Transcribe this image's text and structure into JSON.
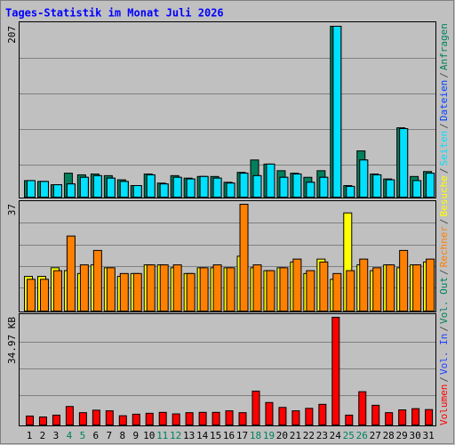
{
  "chart_data": [
    {
      "type": "bar",
      "title": "Tages-Statistik im Monat Juli 2026",
      "ylim": [
        0,
        207
      ],
      "yticks": [
        207
      ],
      "series": [
        {
          "name": "Seiten",
          "color": "#00e0ff",
          "values": [
            20,
            19,
            15,
            16,
            24,
            26,
            23,
            19,
            14,
            27,
            16,
            24,
            22,
            25,
            23,
            17,
            29,
            26,
            40,
            24,
            28,
            18,
            24,
            207,
            13,
            45,
            27,
            21,
            83,
            20,
            29
          ]
        },
        {
          "name": "Dateien",
          "color": "#0040ff",
          "values": [
            20,
            19,
            15,
            16,
            24,
            26,
            23,
            19,
            14,
            27,
            16,
            24,
            22,
            25,
            23,
            17,
            29,
            26,
            40,
            24,
            28,
            18,
            24,
            207,
            13,
            45,
            27,
            21,
            83,
            20,
            29
          ]
        },
        {
          "name": "Anfragen",
          "color": "#00805c",
          "values": [
            20,
            19,
            15,
            29,
            27,
            28,
            26,
            21,
            14,
            28,
            17,
            26,
            23,
            25,
            25,
            18,
            30,
            45,
            40,
            32,
            29,
            24,
            32,
            207,
            14,
            56,
            28,
            22,
            84,
            25,
            31
          ]
        }
      ]
    },
    {
      "type": "bar",
      "ylim": [
        0,
        37
      ],
      "yticks": [
        37
      ],
      "series": [
        {
          "name": "Rechner",
          "color": "#ff8000",
          "values": [
            11,
            11,
            14,
            26,
            16,
            21,
            15,
            13,
            13,
            16,
            16,
            16,
            13,
            15,
            16,
            15,
            37,
            16,
            14,
            15,
            18,
            14,
            17,
            13,
            14,
            18,
            15,
            16,
            21,
            16,
            18
          ]
        },
        {
          "name": "Besuche",
          "color": "#ffff00",
          "values": [
            12,
            12,
            15,
            14,
            13,
            16,
            15,
            12,
            13,
            16,
            16,
            15,
            13,
            15,
            15,
            15,
            19,
            15,
            14,
            15,
            17,
            13,
            18,
            11,
            34,
            16,
            14,
            16,
            15,
            16,
            17
          ]
        }
      ]
    },
    {
      "type": "bar",
      "ylim": [
        0,
        34.97
      ],
      "yticks": [
        {
          "value": 34.97,
          "label": "34.97 KB"
        }
      ],
      "series": [
        {
          "name": "Volumen",
          "color": "#ff0000",
          "values": [
            2.9,
            2.6,
            3.2,
            6.0,
            4.0,
            4.8,
            4.6,
            3.0,
            3.5,
            3.8,
            4.1,
            3.6,
            4.0,
            4.1,
            4.1,
            4.6,
            4.0,
            11.0,
            7.3,
            5.7,
            4.6,
            5.4,
            6.7,
            34.97,
            3.2,
            10.8,
            6.4,
            4.0,
            4.9,
            5.3,
            5.0
          ]
        }
      ],
      "legend_only": [
        {
          "name": "Vol. In",
          "color": "#2040ff"
        },
        {
          "name": "Vol. Out",
          "color": "#00805c"
        }
      ],
      "legend_separator": "/",
      "categories": [
        "1",
        "2",
        "3",
        "4",
        "5",
        "6",
        "7",
        "8",
        "9",
        "10",
        "11",
        "12",
        "13",
        "14",
        "15",
        "16",
        "17",
        "18",
        "19",
        "20",
        "21",
        "22",
        "23",
        "24",
        "25",
        "26",
        "27",
        "28",
        "29",
        "30",
        "31"
      ],
      "label_colors": [
        "#000000",
        "#000000",
        "#000000",
        "#00805c",
        "#00805c",
        "#000000",
        "#000000",
        "#000000",
        "#000000",
        "#000000",
        "#00805c",
        "#00805c",
        "#000000",
        "#000000",
        "#000000",
        "#000000",
        "#000000",
        "#00805c",
        "#00805c",
        "#000000",
        "#000000",
        "#000000",
        "#000000",
        "#000000",
        "#00805c",
        "#00805c",
        "#000000",
        "#000000",
        "#000000",
        "#000000",
        "#000000"
      ]
    }
  ]
}
